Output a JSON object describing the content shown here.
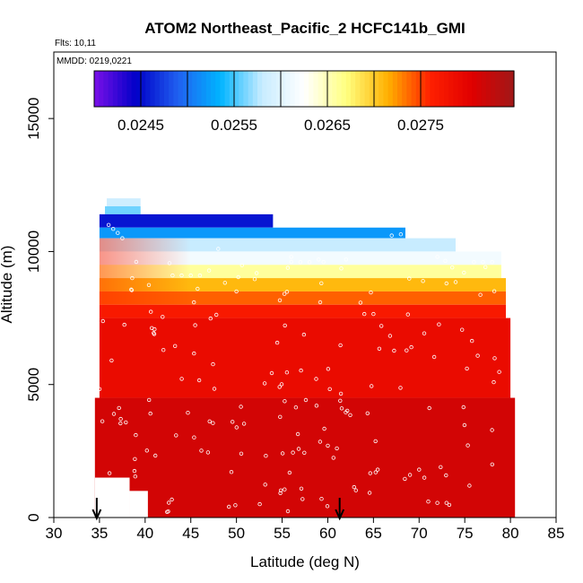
{
  "chart_data": {
    "type": "heatmap",
    "title": "ATOM2 Northeast_Pacific_2 HCFC141b_GMI",
    "annotations": [
      "Flts: 10,11",
      "MMDD: 0219,0221"
    ],
    "xlabel": "Latitude (deg N)",
    "ylabel": "Altitude (m)",
    "xlim": [
      30,
      85
    ],
    "ylim": [
      0,
      17500
    ],
    "x_ticks": [
      30,
      35,
      40,
      45,
      50,
      55,
      60,
      65,
      70,
      75,
      80,
      85
    ],
    "y_ticks": [
      0,
      5000,
      10000,
      15000
    ],
    "colorbar": {
      "min": 0.024,
      "max": 0.0285,
      "tick_values": [
        0.0245,
        0.0255,
        0.0265,
        0.0275
      ],
      "tick_labels": [
        "0.0245",
        "0.0255",
        "0.0265",
        "0.0275"
      ],
      "colors": [
        "#7a10e8",
        "#0000c8",
        "#2060f0",
        "#00b4ff",
        "#c8ecff",
        "#ffffff",
        "#ffff80",
        "#ffb000",
        "#ff2000",
        "#e00000",
        "#a01818"
      ]
    },
    "arrow_markers_x": [
      34.7,
      61.3
    ],
    "layers": [
      {
        "y0": 11700,
        "y1": 12000,
        "x0": 35.8,
        "x1": 39.5,
        "value": 0.02585
      },
      {
        "y0": 11400,
        "y1": 11700,
        "x0": 35.6,
        "x1": 39.5,
        "value": 0.0256
      },
      {
        "y0": 10900,
        "y1": 11400,
        "x0": 35.0,
        "x1": 54.0,
        "value": 0.02455
      },
      {
        "y0": 10500,
        "y1": 10900,
        "x0": 35.0,
        "x1": 68.5,
        "value": 0.0252
      },
      {
        "y0": 10000,
        "y1": 10500,
        "x0": 35.0,
        "x1": 74.0,
        "value": 0.0258
      },
      {
        "y0": 9500,
        "y1": 10000,
        "x0": 35.0,
        "x1": 79.0,
        "value": 0.02615
      },
      {
        "y0": 9000,
        "y1": 9500,
        "x0": 35.0,
        "x1": 79.0,
        "value": 0.0266
      },
      {
        "y0": 8500,
        "y1": 9000,
        "x0": 35.0,
        "x1": 79.5,
        "value": 0.0271
      },
      {
        "y0": 8000,
        "y1": 8500,
        "x0": 35.0,
        "x1": 79.5,
        "value": 0.0274
      },
      {
        "y0": 7500,
        "y1": 8000,
        "x0": 35.0,
        "x1": 79.5,
        "value": 0.0277
      },
      {
        "y0": 4500,
        "y1": 7500,
        "x0": 35.0,
        "x1": 80.0,
        "value": 0.0279
      },
      {
        "y0": 0,
        "y1": 4500,
        "x0": 34.5,
        "x1": 80.5,
        "value": 0.02815
      }
    ]
  }
}
